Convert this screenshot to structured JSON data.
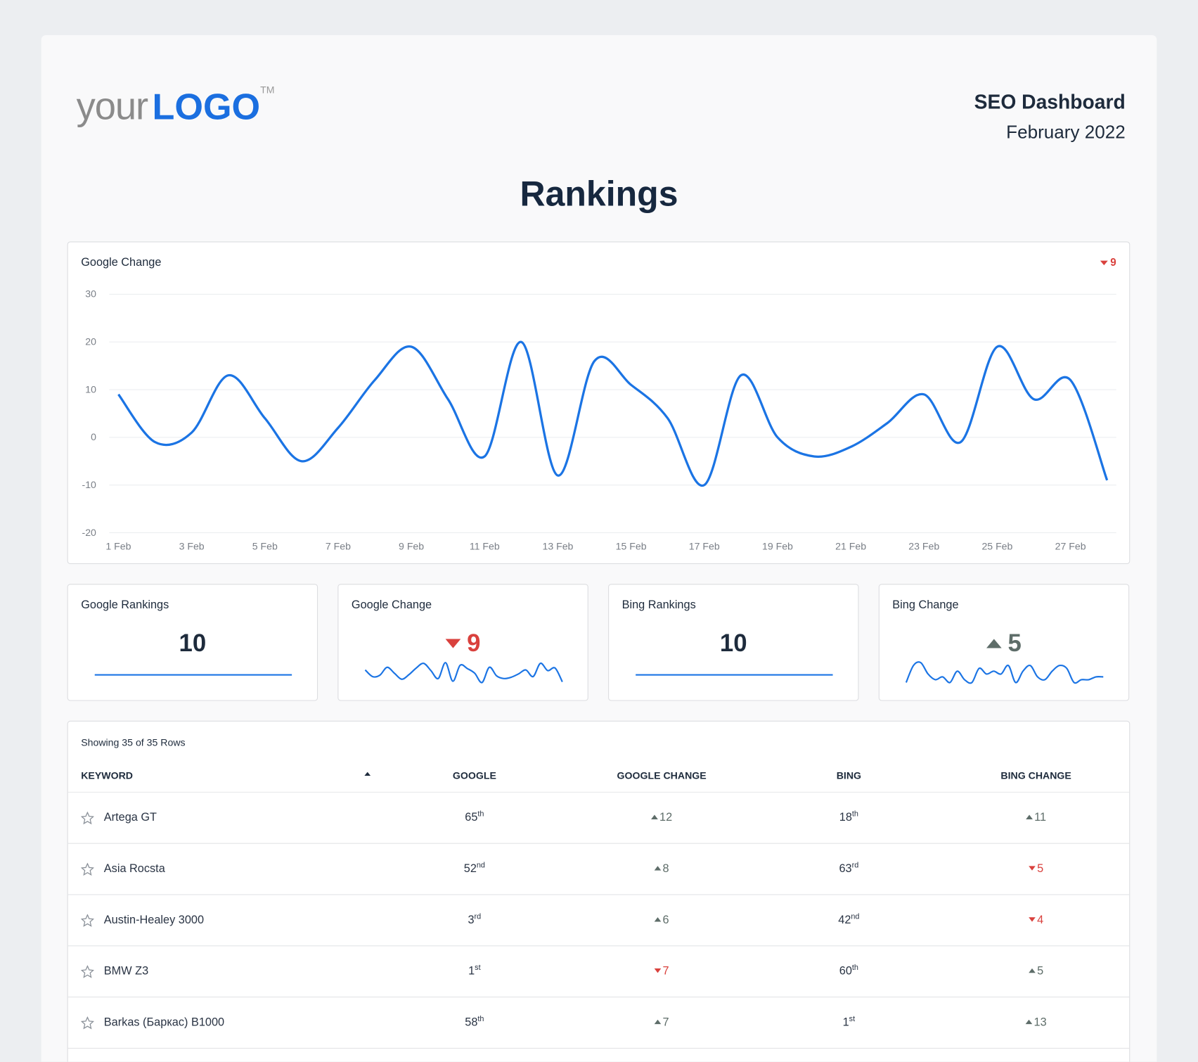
{
  "header": {
    "logo": {
      "light": "your",
      "bold": "LOGO",
      "mark": "TM"
    },
    "report_title": "SEO Dashboard",
    "period": "February 2022"
  },
  "title": "Rankings",
  "chart_data": {
    "type": "line",
    "title": "Google Change",
    "change": 9,
    "change_direction": "down",
    "color": "#1b74e4",
    "categories": [
      "1 Feb",
      null,
      "3 Feb",
      null,
      "5 Feb",
      null,
      "7 Feb",
      null,
      "9 Feb",
      null,
      "11 Feb",
      null,
      "13 Feb",
      null,
      "15 Feb",
      null,
      "17 Feb",
      null,
      "19 Feb",
      null,
      "21 Feb",
      null,
      "23 Feb",
      null,
      "25 Feb",
      null,
      "27 Feb",
      null
    ],
    "values": [
      9,
      -1,
      1,
      13,
      4,
      -5,
      2,
      12,
      19,
      8,
      -4,
      20,
      -8,
      16,
      11,
      4,
      -10,
      13,
      0,
      -4,
      -2,
      3,
      9,
      -1,
      19,
      8,
      12,
      -9
    ],
    "ylim": [
      -20,
      30
    ],
    "yticks": [
      -20,
      -10,
      0,
      10,
      20,
      30
    ],
    "grid": true
  },
  "kpis": [
    {
      "title": "Google Rankings",
      "value": 10
    },
    {
      "title": "Google Change",
      "value": 9,
      "direction": "down"
    },
    {
      "title": "Bing Rankings",
      "value": 10
    },
    {
      "title": "Bing Change",
      "value": 5,
      "direction": "up",
      "spark": [
        2,
        8,
        9,
        5,
        3,
        4,
        2,
        6,
        3,
        2,
        7,
        5,
        6,
        5,
        8,
        2,
        6,
        8,
        4,
        3,
        6,
        8,
        7,
        2,
        3,
        3,
        4,
        4
      ]
    }
  ],
  "table": {
    "summary": "Showing 35 of 35 Rows",
    "headers": [
      "KEYWORD",
      "GOOGLE",
      "GOOGLE CHANGE",
      "BING",
      "BING CHANGE"
    ],
    "rows": [
      {
        "keyword": "Artega GT",
        "google": {
          "value": 65,
          "suffix": "th"
        },
        "google_change": {
          "value": 12,
          "direction": "up"
        },
        "bing": {
          "value": 18,
          "suffix": "th"
        },
        "bing_change": {
          "value": 11,
          "direction": "up"
        }
      },
      {
        "keyword": "Asia Rocsta",
        "google": {
          "value": 52,
          "suffix": "nd"
        },
        "google_change": {
          "value": 8,
          "direction": "up"
        },
        "bing": {
          "value": 63,
          "suffix": "rd"
        },
        "bing_change": {
          "value": 5,
          "direction": "down"
        }
      },
      {
        "keyword": "Austin-Healey 3000",
        "google": {
          "value": 3,
          "suffix": "rd"
        },
        "google_change": {
          "value": 6,
          "direction": "up"
        },
        "bing": {
          "value": 42,
          "suffix": "nd"
        },
        "bing_change": {
          "value": 4,
          "direction": "down"
        }
      },
      {
        "keyword": "BMW Z3",
        "google": {
          "value": 1,
          "suffix": "st"
        },
        "google_change": {
          "value": 7,
          "direction": "down"
        },
        "bing": {
          "value": 60,
          "suffix": "th"
        },
        "bing_change": {
          "value": 5,
          "direction": "up"
        }
      },
      {
        "keyword": "Barkas (Баркас) B1000",
        "google": {
          "value": 58,
          "suffix": "th"
        },
        "google_change": {
          "value": 7,
          "direction": "up"
        },
        "bing": {
          "value": 1,
          "suffix": "st"
        },
        "bing_change": {
          "value": 13,
          "direction": "up"
        }
      }
    ]
  }
}
